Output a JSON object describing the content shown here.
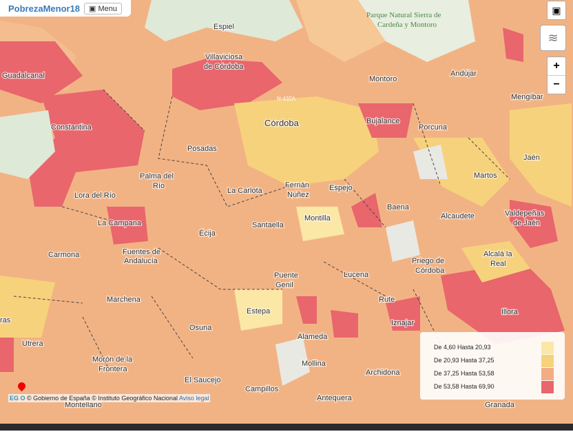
{
  "header": {
    "title": "PobrezaMenor18",
    "menu": "Menu"
  },
  "places": [
    "Espiel",
    "Villaviciosa",
    "de Córdoba",
    "Parque Natural Sierra de",
    "Cardeña y Montoro",
    "Andújar",
    "Montoro",
    "Mengíbar",
    "Guadalcanal",
    "Constantina",
    "Córdoba",
    "N-432A",
    "Bujalance",
    "Porcuna",
    "Jaén",
    "Posadas",
    "Palma del",
    "Río",
    "La Carlota",
    "Fernán",
    "Núñez",
    "Espejo",
    "Martos",
    "Lora del Río",
    "Baena",
    "Valdepeñas",
    "de Jaén",
    "La Campana",
    "Montilla",
    "Alcaudete",
    "Écija",
    "Santaella",
    "Carmona",
    "Fuentes de",
    "Andalucía",
    "Alcalá la",
    "Real",
    "Priego de",
    "Córdoba",
    "Puente",
    "Genil",
    "Lucena",
    "Marchena",
    "Rute",
    "Estepa",
    "Illora",
    "Iznajar",
    "Osuna",
    "Alameda",
    "Utrera",
    "Mollina",
    "Archidona",
    "Morón de la",
    "Frontera",
    "El Saucejo",
    "Campillos",
    "Antequera",
    "Montellano",
    "Granada",
    "ras"
  ],
  "controls": {
    "zoom_in": "+",
    "zoom_out": "−"
  },
  "legend": [
    {
      "label": "De 4,60 Hasta 20,93",
      "color": "#fbe7a6"
    },
    {
      "label": "De 20,93 Hasta 37,25",
      "color": "#f7d27d"
    },
    {
      "label": "De 37,25 Hasta 53,58",
      "color": "#f3ad82"
    },
    {
      "label": "De 53,58 Hasta 69,90",
      "color": "#e8666c"
    }
  ],
  "attribution": {
    "logo": "EG O",
    "gov": "© Gobierno de España",
    "ign": "© Instituto Geográfico Nacional",
    "legal": "Aviso legal"
  }
}
